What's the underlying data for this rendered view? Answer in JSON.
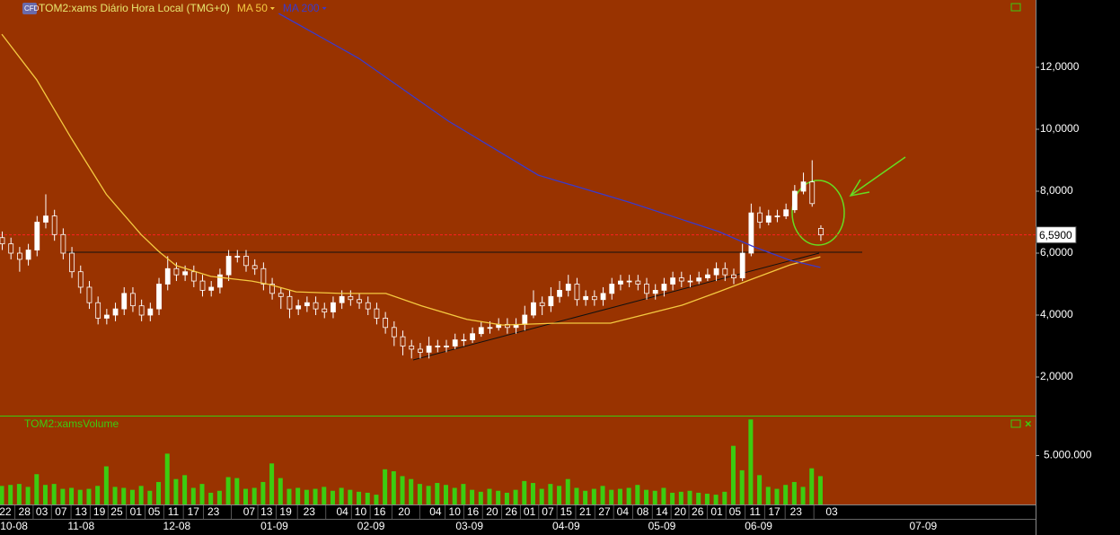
{
  "chart_data": {
    "type": "candlestick",
    "title": "TOM2:xams Diário Hora Local (TMG+0)",
    "candle_color": "#ffffff",
    "candles": [
      [
        6.5,
        6.7,
        6.1,
        6.3
      ],
      [
        6.3,
        6.5,
        5.8,
        6.0
      ],
      [
        6.0,
        6.2,
        5.4,
        5.8
      ],
      [
        5.8,
        6.3,
        5.6,
        6.1
      ],
      [
        6.1,
        7.2,
        5.9,
        7.0
      ],
      [
        7.0,
        7.9,
        6.8,
        7.2
      ],
      [
        7.2,
        7.4,
        6.4,
        6.6
      ],
      [
        6.6,
        6.8,
        5.8,
        6.0
      ],
      [
        6.0,
        6.2,
        5.2,
        5.4
      ],
      [
        5.4,
        5.6,
        4.7,
        4.9
      ],
      [
        4.9,
        5.1,
        4.2,
        4.4
      ],
      [
        4.4,
        4.6,
        3.7,
        3.9
      ],
      [
        3.9,
        4.2,
        3.7,
        4.0
      ],
      [
        4.0,
        4.4,
        3.8,
        4.2
      ],
      [
        4.2,
        4.9,
        4.0,
        4.7
      ],
      [
        4.7,
        4.9,
        4.1,
        4.3
      ],
      [
        4.3,
        4.5,
        3.8,
        4.0
      ],
      [
        4.0,
        4.4,
        3.8,
        4.2
      ],
      [
        4.2,
        5.2,
        4.0,
        5.0
      ],
      [
        5.0,
        5.9,
        4.8,
        5.5
      ],
      [
        5.5,
        5.7,
        5.1,
        5.3
      ],
      [
        5.3,
        5.6,
        5.1,
        5.4
      ],
      [
        5.4,
        5.6,
        4.9,
        5.1
      ],
      [
        5.1,
        5.3,
        4.6,
        4.8
      ],
      [
        4.8,
        5.1,
        4.6,
        4.9
      ],
      [
        4.9,
        5.5,
        4.7,
        5.3
      ],
      [
        5.3,
        6.1,
        5.1,
        5.9
      ],
      [
        5.9,
        6.1,
        5.7,
        5.9
      ],
      [
        5.9,
        6.1,
        5.4,
        5.6
      ],
      [
        5.6,
        5.8,
        5.3,
        5.5
      ],
      [
        5.5,
        5.7,
        4.8,
        5.0
      ],
      [
        5.0,
        5.2,
        4.5,
        4.7
      ],
      [
        4.7,
        4.9,
        4.2,
        4.6
      ],
      [
        4.6,
        4.8,
        3.9,
        4.2
      ],
      [
        4.2,
        4.5,
        4.0,
        4.3
      ],
      [
        4.3,
        4.6,
        4.1,
        4.4
      ],
      [
        4.4,
        4.6,
        4.0,
        4.2
      ],
      [
        4.2,
        4.4,
        3.9,
        4.1
      ],
      [
        4.1,
        4.6,
        3.9,
        4.4
      ],
      [
        4.4,
        4.8,
        4.2,
        4.6
      ],
      [
        4.6,
        4.8,
        4.3,
        4.5
      ],
      [
        4.5,
        4.7,
        4.2,
        4.4
      ],
      [
        4.4,
        4.6,
        4.0,
        4.2
      ],
      [
        4.2,
        4.4,
        3.7,
        3.9
      ],
      [
        3.9,
        4.1,
        3.4,
        3.6
      ],
      [
        3.6,
        3.8,
        3.0,
        3.3
      ],
      [
        3.3,
        3.5,
        2.7,
        3.0
      ],
      [
        3.0,
        3.2,
        2.6,
        2.9
      ],
      [
        2.9,
        3.1,
        2.6,
        2.8
      ],
      [
        2.8,
        3.3,
        2.6,
        3.0
      ],
      [
        3.0,
        3.2,
        2.8,
        3.0
      ],
      [
        3.0,
        3.2,
        2.8,
        3.0
      ],
      [
        3.0,
        3.4,
        2.9,
        3.2
      ],
      [
        3.2,
        3.4,
        3.0,
        3.2
      ],
      [
        3.2,
        3.6,
        3.1,
        3.4
      ],
      [
        3.4,
        3.8,
        3.3,
        3.6
      ],
      [
        3.6,
        3.8,
        3.4,
        3.6
      ],
      [
        3.6,
        3.9,
        3.5,
        3.7
      ],
      [
        3.7,
        3.9,
        3.4,
        3.6
      ],
      [
        3.6,
        3.9,
        3.4,
        3.7
      ],
      [
        3.7,
        4.3,
        3.5,
        4.0
      ],
      [
        4.0,
        4.8,
        3.9,
        4.4
      ],
      [
        4.4,
        4.6,
        4.0,
        4.3
      ],
      [
        4.3,
        4.9,
        4.1,
        4.6
      ],
      [
        4.6,
        5.1,
        4.4,
        4.8
      ],
      [
        4.8,
        5.3,
        4.6,
        5.0
      ],
      [
        5.0,
        5.2,
        4.3,
        4.5
      ],
      [
        4.5,
        4.8,
        4.3,
        4.6
      ],
      [
        4.6,
        4.8,
        4.3,
        4.5
      ],
      [
        4.5,
        4.9,
        4.3,
        4.7
      ],
      [
        4.7,
        5.2,
        4.5,
        5.0
      ],
      [
        5.0,
        5.3,
        4.8,
        5.1
      ],
      [
        5.1,
        5.3,
        4.9,
        5.1
      ],
      [
        5.1,
        5.3,
        4.8,
        5.0
      ],
      [
        5.0,
        5.2,
        4.5,
        4.7
      ],
      [
        4.7,
        5.0,
        4.5,
        4.8
      ],
      [
        4.8,
        5.2,
        4.6,
        5.0
      ],
      [
        5.0,
        5.4,
        4.8,
        5.2
      ],
      [
        5.2,
        5.4,
        4.9,
        5.1
      ],
      [
        5.1,
        5.3,
        4.9,
        5.1
      ],
      [
        5.1,
        5.4,
        5.0,
        5.2
      ],
      [
        5.2,
        5.5,
        5.1,
        5.3
      ],
      [
        5.3,
        5.7,
        5.1,
        5.5
      ],
      [
        5.5,
        5.7,
        5.1,
        5.3
      ],
      [
        5.3,
        5.5,
        5.0,
        5.2
      ],
      [
        5.2,
        6.3,
        5.1,
        6.0
      ],
      [
        6.0,
        7.6,
        5.9,
        7.3
      ],
      [
        7.3,
        7.5,
        6.8,
        7.0
      ],
      [
        7.0,
        7.4,
        6.9,
        7.2
      ],
      [
        7.2,
        7.4,
        7.0,
        7.2
      ],
      [
        7.2,
        7.6,
        7.1,
        7.4
      ],
      [
        7.4,
        8.2,
        7.3,
        8.0
      ],
      [
        8.0,
        8.6,
        7.9,
        8.3
      ],
      [
        8.3,
        9.0,
        7.5,
        7.6
      ],
      [
        6.8,
        6.9,
        6.4,
        6.59
      ]
    ],
    "xlim": [
      0,
      118.5
    ],
    "ylim": [
      0.754,
      14.174
    ],
    "yticks": [
      {
        "value": 2,
        "label": "2,0000"
      },
      {
        "value": 4,
        "label": "4,0000"
      },
      {
        "value": 6,
        "label": "6,0000"
      },
      {
        "value": 8,
        "label": "8,0000"
      },
      {
        "value": 10,
        "label": "10,0000"
      },
      {
        "value": 12,
        "label": "12,0000"
      }
    ],
    "last_price": {
      "value": 6.59,
      "label": "6,5900",
      "color": "#ff2020"
    },
    "ma": [
      {
        "name": "MA 50",
        "color": "#f5c940",
        "x": [
          0,
          4,
          8,
          12,
          16,
          18,
          20,
          24,
          28.7,
          30.7,
          33.8,
          39,
          44.1,
          48.2,
          53.4,
          57.5,
          63.7,
          69.9,
          74,
          78.1,
          82.3,
          86.4,
          90.5,
          94
        ],
        "values": [
          13.07,
          11.6,
          9.7,
          7.9,
          6.6,
          6.06,
          5.6,
          5.25,
          5.1,
          4.99,
          4.75,
          4.7,
          4.7,
          4.3,
          3.86,
          3.68,
          3.74,
          3.74,
          4.03,
          4.32,
          4.75,
          5.19,
          5.62,
          5.88
        ]
      },
      {
        "name": "MA 200",
        "color": "#3a3acc",
        "x": [
          31.8,
          41,
          51.3,
          61.6,
          72,
          82.3,
          86.4,
          90.5,
          94
        ],
        "values": [
          13.74,
          12.29,
          10.26,
          8.52,
          7.65,
          6.7,
          6.2,
          5.77,
          5.54
        ]
      }
    ],
    "day_ticks": [
      {
        "value": 0.4,
        "label": "22"
      },
      {
        "value": 2.6,
        "label": "28"
      },
      {
        "value": 4.6,
        "label": "03"
      },
      {
        "value": 6.8,
        "label": "07"
      },
      {
        "value": 9.1,
        "label": "13"
      },
      {
        "value": 11.2,
        "label": "19"
      },
      {
        "value": 13.2,
        "label": "25"
      },
      {
        "value": 15.4,
        "label": "01"
      },
      {
        "value": 17.5,
        "label": "05"
      },
      {
        "value": 19.7,
        "label": "11"
      },
      {
        "value": 22.0,
        "label": "17"
      },
      {
        "value": 24.3,
        "label": "23"
      },
      {
        "value": 28.4,
        "label": "07"
      },
      {
        "value": 30.4,
        "label": "13"
      },
      {
        "value": 32.6,
        "label": "19"
      },
      {
        "value": 35.3,
        "label": "23"
      },
      {
        "value": 39.1,
        "label": "04"
      },
      {
        "value": 41.2,
        "label": "10"
      },
      {
        "value": 43.4,
        "label": "16"
      },
      {
        "value": 46.2,
        "label": "20"
      },
      {
        "value": 49.8,
        "label": "04"
      },
      {
        "value": 52.0,
        "label": "10"
      },
      {
        "value": 54.1,
        "label": "16"
      },
      {
        "value": 56.3,
        "label": "20"
      },
      {
        "value": 58.5,
        "label": "26"
      },
      {
        "value": 60.6,
        "label": "01"
      },
      {
        "value": 62.7,
        "label": "07"
      },
      {
        "value": 64.8,
        "label": "15"
      },
      {
        "value": 67.0,
        "label": "21"
      },
      {
        "value": 69.2,
        "label": "27"
      },
      {
        "value": 71.3,
        "label": "04"
      },
      {
        "value": 73.6,
        "label": "08"
      },
      {
        "value": 75.8,
        "label": "14"
      },
      {
        "value": 77.9,
        "label": "20"
      },
      {
        "value": 79.9,
        "label": "26"
      },
      {
        "value": 82.1,
        "label": "01"
      },
      {
        "value": 84.2,
        "label": "05"
      },
      {
        "value": 86.5,
        "label": "11"
      },
      {
        "value": 88.7,
        "label": "17"
      },
      {
        "value": 91.2,
        "label": "23"
      },
      {
        "value": 95.3,
        "label": "03"
      }
    ],
    "month_ticks": [
      {
        "value": 1.4,
        "label": "10-08"
      },
      {
        "value": 9.1,
        "label": "11-08"
      },
      {
        "value": 20.1,
        "label": "12-08"
      },
      {
        "value": 31.3,
        "label": "01-09"
      },
      {
        "value": 42.4,
        "label": "02-09"
      },
      {
        "value": 53.7,
        "label": "03-09"
      },
      {
        "value": 64.8,
        "label": "04-09"
      },
      {
        "value": 75.8,
        "label": "05-09"
      },
      {
        "value": 86.9,
        "label": "06-09"
      },
      {
        "value": 105.8,
        "label": "07-09"
      }
    ],
    "volume": {
      "title": "TOM2:xamsVolume",
      "color": "#3ccc10",
      "ylim": [
        0,
        9000000
      ],
      "yticks": [
        {
          "value": 5000000,
          "label": "5.000.000"
        }
      ],
      "values": [
        1900000,
        2000000,
        2100000,
        1800000,
        3100000,
        2000000,
        2100000,
        1600000,
        1700000,
        1500000,
        1600000,
        1900000,
        3900000,
        1800000,
        1700000,
        1500000,
        1900000,
        1400000,
        2300000,
        5200000,
        2600000,
        3000000,
        1700000,
        2100000,
        1200000,
        1400000,
        2800000,
        2700000,
        1600000,
        1700000,
        2300000,
        4200000,
        2700000,
        1600000,
        1700000,
        1500000,
        1600000,
        1800000,
        1400000,
        1700000,
        1500000,
        1300000,
        1200000,
        1000000,
        3600000,
        3400000,
        2900000,
        2600000,
        2100000,
        1900000,
        2200000,
        2000000,
        1700000,
        2100000,
        1500000,
        1300000,
        1600000,
        1400000,
        1200000,
        1500000,
        2400000,
        2200000,
        1600000,
        2100000,
        1900000,
        2600000,
        1700000,
        1400000,
        1600000,
        1900000,
        1500000,
        1600000,
        1700000,
        2000000,
        1500000,
        1400000,
        1700000,
        1200000,
        1300000,
        1400000,
        1200000,
        1100000,
        1000000,
        1300000,
        6000000,
        3500000,
        8700000,
        3000000,
        1800000,
        1600000,
        2000000,
        2300000,
        1800000,
        3700000,
        2900000
      ]
    }
  }
}
